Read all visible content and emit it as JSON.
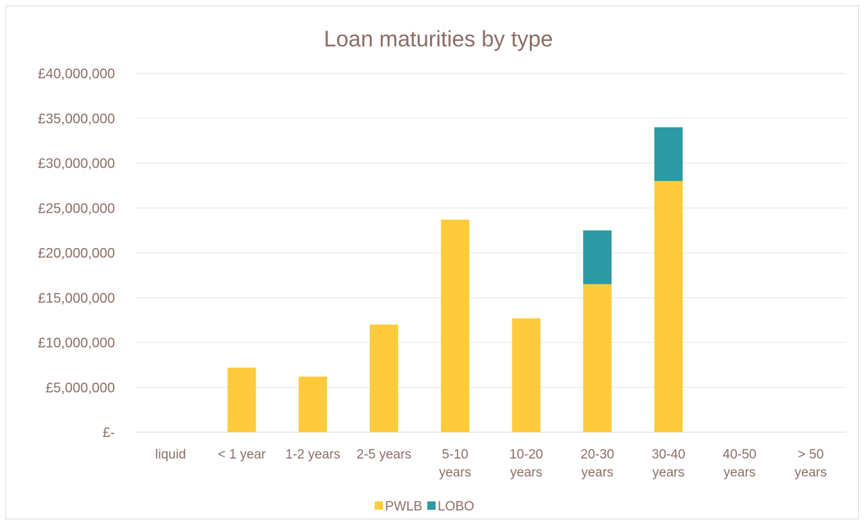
{
  "chart_data": {
    "type": "bar",
    "stacked": true,
    "title": "Loan maturities by type",
    "xlabel": "",
    "ylabel": "",
    "ylim": [
      0,
      40000000
    ],
    "y_ticks": [
      0,
      5000000,
      10000000,
      15000000,
      20000000,
      25000000,
      30000000,
      35000000,
      40000000
    ],
    "y_tick_labels": [
      "£-",
      "£5,000,000",
      "£10,000,000",
      "£15,000,000",
      "£20,000,000",
      "£25,000,000",
      "£30,000,000",
      "£35,000,000",
      "£40,000,000"
    ],
    "categories": [
      "liquid",
      "< 1 year",
      "1-2 years",
      "2-5 years",
      "5-10 years",
      "10-20 years",
      "20-30 years",
      "30-40 years",
      "40-50 years",
      "> 50 years"
    ],
    "category_label_lines": [
      [
        "liquid"
      ],
      [
        "< 1 year"
      ],
      [
        "1-2 years"
      ],
      [
        "2-5 years"
      ],
      [
        "5-10",
        "years"
      ],
      [
        "10-20",
        "years"
      ],
      [
        "20-30",
        "years"
      ],
      [
        "30-40",
        "years"
      ],
      [
        "40-50",
        "years"
      ],
      [
        "> 50",
        "years"
      ]
    ],
    "series": [
      {
        "name": "PWLB",
        "color": "#fdcb3b",
        "values": [
          0,
          7200000,
          6200000,
          12000000,
          23700000,
          12700000,
          16500000,
          28000000,
          0,
          0
        ]
      },
      {
        "name": "LOBO",
        "color": "#2e9aa3",
        "values": [
          0,
          0,
          0,
          0,
          0,
          0,
          6000000,
          6000000,
          0,
          0
        ]
      }
    ],
    "grid": true,
    "legend_position": "bottom"
  }
}
